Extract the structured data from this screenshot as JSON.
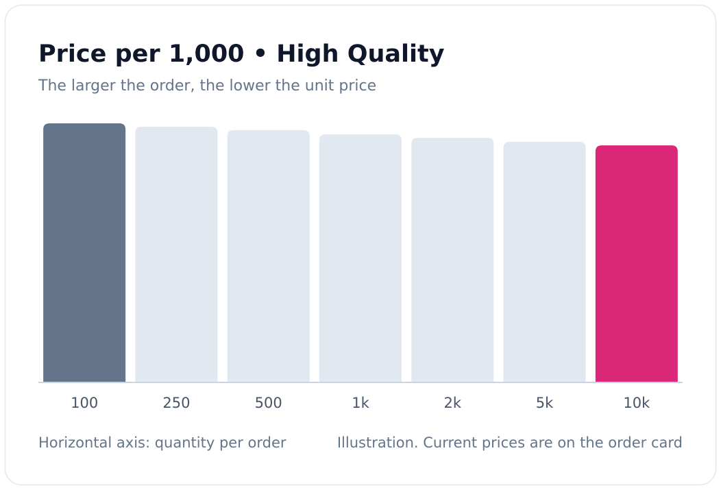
{
  "chart_data": {
    "type": "bar",
    "title": "Price per 1,000 • High Quality",
    "subtitle": "The larger the order, the lower the unit price",
    "categories": [
      "100",
      "250",
      "500",
      "1k",
      "2k",
      "5k",
      "10k"
    ],
    "values": [
      100,
      98.7,
      97.4,
      95.8,
      94.4,
      92.9,
      91.5
    ],
    "colors": [
      "#64748b",
      "#e2e8f0",
      "#e2e8f0",
      "#e2e8f0",
      "#e2e8f0",
      "#e2e8f0",
      "#db2777"
    ],
    "ylim": [
      0,
      100
    ],
    "x_axis_note": "Horizontal axis: quantity per order",
    "footnote": "Illustration. Current prices are on the order card"
  }
}
